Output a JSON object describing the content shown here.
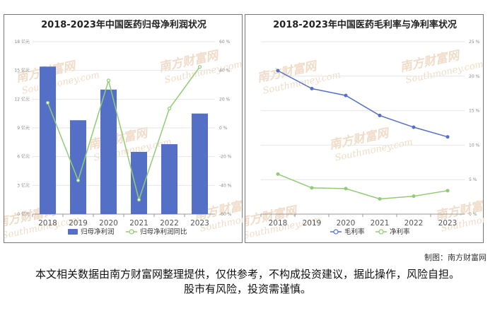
{
  "chart_data": [
    {
      "type": "bar",
      "title": "2018-2023年中国医药归母净利润状况",
      "categories": [
        "2018",
        "2019",
        "2020",
        "2021",
        "2022",
        "2023"
      ],
      "series": [
        {
          "name": "归母净利润",
          "type": "bar",
          "axis": "left",
          "values": [
            15.4,
            9.8,
            13.0,
            6.5,
            7.3,
            10.5
          ]
        },
        {
          "name": "归母净利润同比",
          "type": "line",
          "axis": "right",
          "values": [
            17.5,
            -36.5,
            33.0,
            -50.0,
            13.5,
            42.5
          ]
        }
      ],
      "y_left": {
        "ticks": [
          "0 亿元",
          "3 亿元",
          "6 亿元",
          "9 亿元",
          "12 亿元",
          "15 亿元",
          "18 亿元"
        ],
        "range": [
          0,
          18
        ]
      },
      "y_right": {
        "ticks": [
          "-60 %",
          "-40 %",
          "-20 %",
          "0 %",
          "20 %",
          "40 %",
          "60 %"
        ],
        "range": [
          -60,
          60
        ]
      },
      "grid": true,
      "legend": "bottom",
      "colors": {
        "bar": "#5470c6",
        "line": "#91cc75"
      }
    },
    {
      "type": "line",
      "title": "2018-2023年中国医药毛利率与净利率状况",
      "categories": [
        "2018",
        "2019",
        "2020",
        "2021",
        "2022",
        "2023"
      ],
      "series": [
        {
          "name": "毛利率",
          "values": [
            20.8,
            18.2,
            17.2,
            14.3,
            12.6,
            11.2
          ]
        },
        {
          "name": "净利率",
          "values": [
            5.8,
            3.8,
            3.7,
            2.2,
            2.6,
            3.4
          ]
        }
      ],
      "y_right": {
        "ticks": [
          "0 %",
          "5 %",
          "10 %",
          "15 %",
          "20 %",
          "25 %"
        ],
        "range": [
          0,
          25
        ]
      },
      "grid": true,
      "legend": "bottom",
      "colors": {
        "毛利率": "#5470c6",
        "净利率": "#91cc75"
      }
    }
  ],
  "watermark": {
    "cn": "南方财富网",
    "en": "Southmoney.com"
  },
  "credit": "制图：南方财富网",
  "disclaimer": "本文相关数据由南方财富网整理提供，仅供参考，不构成投资建议，据此操作，风险自担。股市有风险，投资需谨慎。"
}
